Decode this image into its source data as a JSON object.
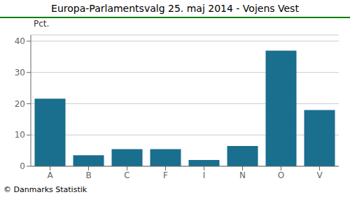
{
  "chart_data": {
    "type": "bar",
    "title": "Europa-Parlamentsvalg 25. maj 2014 - Vojens Vest",
    "categories": [
      "A",
      "B",
      "C",
      "F",
      "I",
      "N",
      "O",
      "V"
    ],
    "values": [
      21.6,
      3.5,
      5.5,
      5.5,
      2.0,
      6.5,
      37.0,
      18.0
    ],
    "color": "#1a6e8e",
    "ylabel": "Pct.",
    "ylim": [
      0,
      42
    ],
    "yticks": [
      0,
      10,
      20,
      30,
      40
    ],
    "grid": true,
    "annotations": [
      "© Danmarks Statistik"
    ]
  }
}
